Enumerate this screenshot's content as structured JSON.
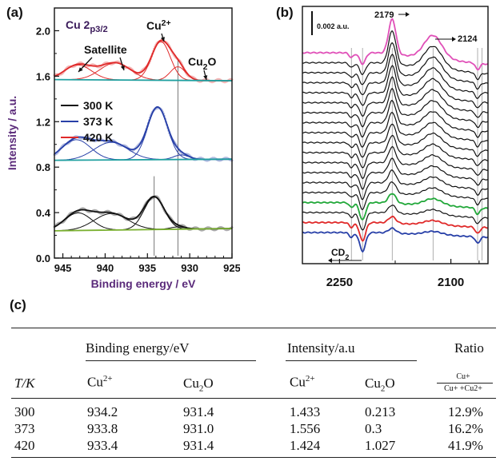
{
  "panel_labels": {
    "a": "(a)",
    "b": "(b)",
    "c": "(c)"
  },
  "colors": {
    "black": "#111111",
    "blue": "#2840a8",
    "red": "#e02a2a",
    "green": "#22a83a",
    "magenta": "#e050b8",
    "background_green": "#7ab030",
    "background_teal": "#20a0a0",
    "ref_line": "#555555"
  },
  "chart_data": [
    {
      "id": "xps",
      "type": "line",
      "title": "Cu 2p3/2",
      "xlabel": "Binding energy / eV",
      "ylabel": "Intensity / a.u.",
      "xlim": [
        946,
        925
      ],
      "ylim": [
        0.0,
        2.2
      ],
      "xticks": [
        "945",
        "940",
        "935",
        "930",
        "925"
      ],
      "yticks": [
        "0.0",
        "0.4",
        "0.8",
        "1.2",
        "1.6",
        "2.0"
      ],
      "annotations": {
        "satellite": "Satellite",
        "cu2plus": "Cu2+",
        "cu2o": "Cu2O"
      },
      "reference_lines_x": [
        934.2,
        931.4
      ],
      "legend": {
        "placement": "center-left",
        "entries": [
          "300 K",
          "373 K",
          "420 K"
        ]
      },
      "series": [
        {
          "name": "300 K",
          "color": "black",
          "baseline": 0.24,
          "baseline_end": 0.26,
          "peaks": [
            {
              "center": 943.2,
              "height": 0.155,
              "width": 1.6
            },
            {
              "center": 939.3,
              "height": 0.145,
              "width": 2.0
            },
            {
              "center": 934.2,
              "height": 0.285,
              "width": 1.2
            },
            {
              "center": 931.4,
              "height": 0.02,
              "width": 0.9
            }
          ]
        },
        {
          "name": "373 K",
          "color": "blue",
          "baseline": 0.86,
          "baseline_end": 0.87,
          "peaks": [
            {
              "center": 943.4,
              "height": 0.18,
              "width": 1.7
            },
            {
              "center": 939.3,
              "height": 0.155,
              "width": 2.0
            },
            {
              "center": 933.8,
              "height": 0.46,
              "width": 1.2
            },
            {
              "center": 931.0,
              "height": 0.04,
              "width": 0.9
            }
          ]
        },
        {
          "name": "420 K",
          "color": "red",
          "baseline": 1.57,
          "baseline_end": 1.56,
          "peaks": [
            {
              "center": 943.2,
              "height": 0.13,
              "width": 1.6
            },
            {
              "center": 938.8,
              "height": 0.15,
              "width": 1.8
            },
            {
              "center": 933.4,
              "height": 0.34,
              "width": 1.1
            },
            {
              "center": 931.4,
              "height": 0.12,
              "width": 0.9
            }
          ]
        }
      ]
    },
    {
      "id": "ir",
      "type": "line",
      "title": "",
      "scale_bar": "0.002 a.u.",
      "xticks": [
        "2250",
        "2100"
      ],
      "xlim": [
        2300,
        2050
      ],
      "annotations": {
        "peak_a": "2179",
        "peak_b": "2124",
        "cd2": "CD2"
      },
      "reference_lines_x": [
        2234,
        2219,
        2179,
        2124,
        2064,
        2058
      ],
      "series_count": 19,
      "series_colors": [
        "magenta",
        "black",
        "black",
        "black",
        "black",
        "black",
        "black",
        "black",
        "black",
        "black",
        "black",
        "black",
        "black",
        "black",
        "black",
        "green",
        "black",
        "red",
        "blue"
      ]
    }
  ],
  "table": {
    "headers": {
      "binding_energy": "Binding energy/eV",
      "intensity": "Intensity/a.u",
      "ratio": "Ratio",
      "t": "T/K",
      "cu2_be": "Cu2+",
      "cu2o_be": "Cu2O",
      "cu2_int": "Cu2+",
      "cu2o_int": "Cu2O",
      "ratio_num": "Cu+",
      "ratio_den": "Cu+ +Cu2+"
    },
    "rows": [
      {
        "t": "300",
        "be_cu2": "934.2",
        "be_cu2o": "931.4",
        "int_cu2": "1.433",
        "int_cu2o": "0.213",
        "ratio": "12.9%"
      },
      {
        "t": "373",
        "be_cu2": "933.8",
        "be_cu2o": "931.0",
        "int_cu2": "1.556",
        "int_cu2o": "0.3",
        "ratio": "16.2%"
      },
      {
        "t": "420",
        "be_cu2": "933.4",
        "be_cu2o": "931.4",
        "int_cu2": "1.424",
        "int_cu2o": "1.027",
        "ratio": "41.9%"
      }
    ]
  }
}
